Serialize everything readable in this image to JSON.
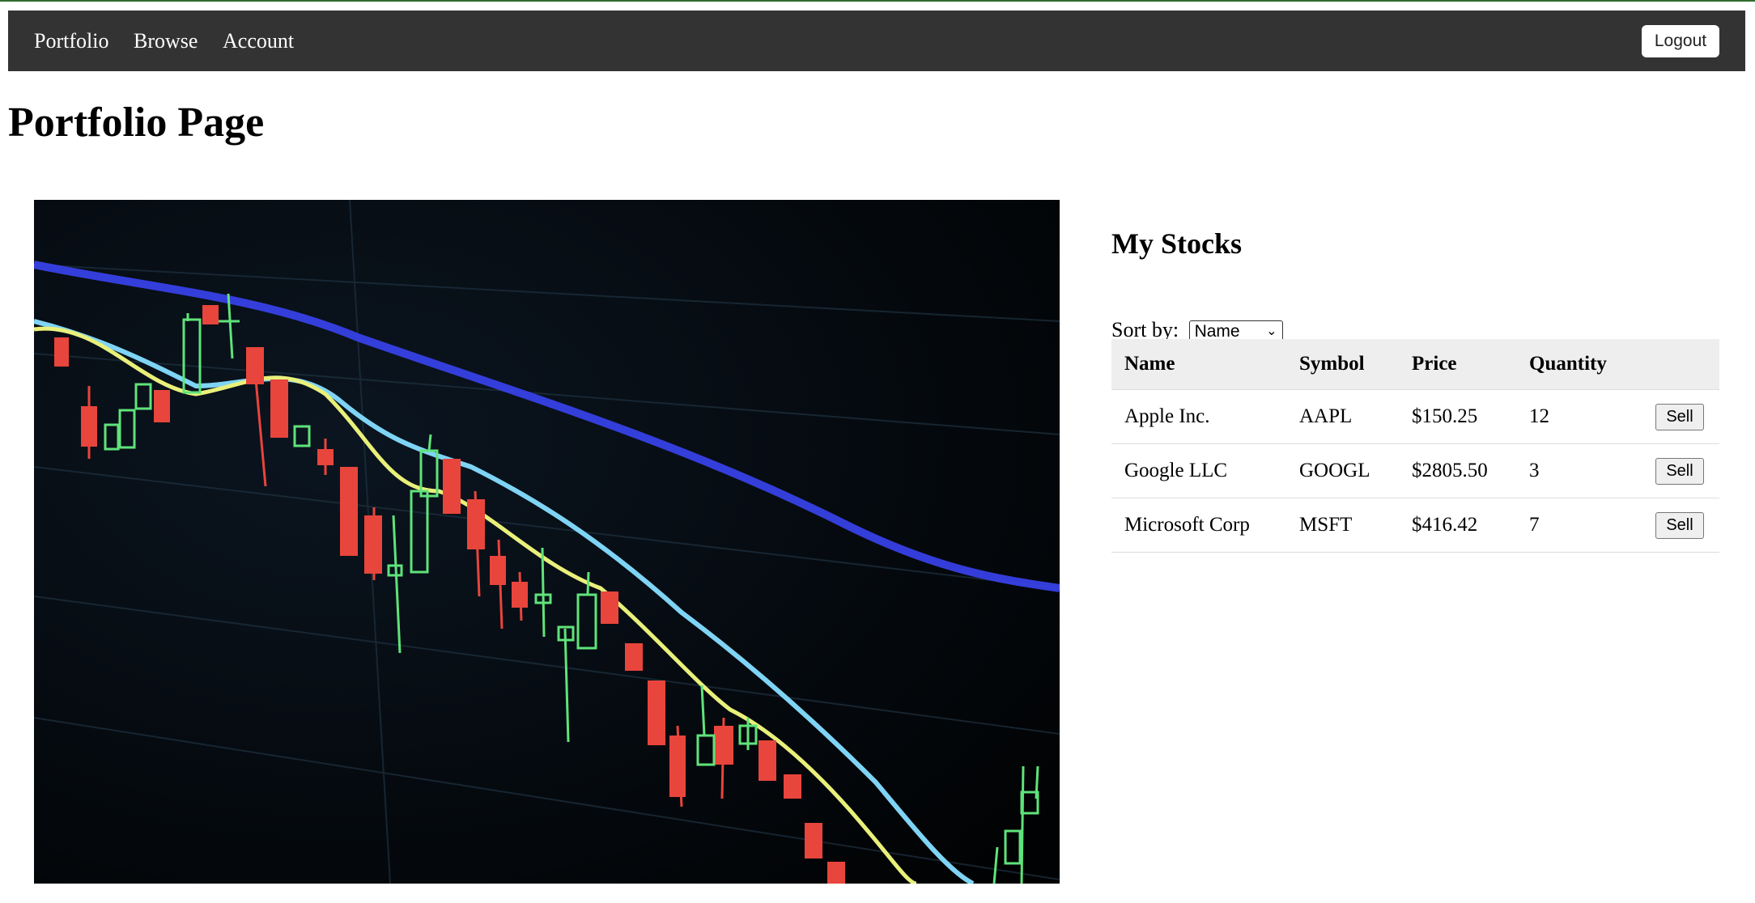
{
  "nav": {
    "links": [
      "Portfolio",
      "Browse",
      "Account"
    ],
    "logout_label": "Logout"
  },
  "page": {
    "title": "Portfolio Page"
  },
  "stocks": {
    "title": "My Stocks",
    "sort_label": "Sort by:",
    "sort_selected": "Name",
    "columns": [
      "Name",
      "Symbol",
      "Price",
      "Quantity",
      ""
    ],
    "rows": [
      {
        "name": "Apple Inc.",
        "symbol": "AAPL",
        "price": "$150.25",
        "quantity": "12",
        "action": "Sell"
      },
      {
        "name": "Google LLC",
        "symbol": "GOOGL",
        "price": "$2805.50",
        "quantity": "3",
        "action": "Sell"
      },
      {
        "name": "Microsoft Corp",
        "symbol": "MSFT",
        "price": "$416.42",
        "quantity": "7",
        "action": "Sell"
      }
    ]
  },
  "colors": {
    "navbar_bg": "#333333",
    "top_accent": "#2f6b2f",
    "candle_up": "#5fe37a",
    "candle_down": "#e8453c",
    "header_row_bg": "#eeeeee"
  }
}
